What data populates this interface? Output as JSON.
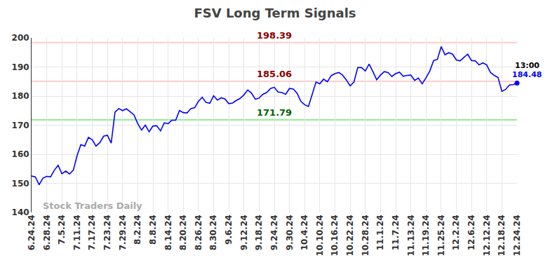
{
  "chart_data": {
    "type": "line",
    "title": "FSV Long Term Signals",
    "watermark": "Stock Traders Daily",
    "color": "#0000ff",
    "grid": true,
    "ylim": [
      140,
      200
    ],
    "yticks": [
      140,
      150,
      160,
      170,
      180,
      190,
      200
    ],
    "last_label": {
      "time": "13:00"
    },
    "levels": [
      {
        "value": 198.39,
        "color": "#ffcccc",
        "text_color": "#8b0000"
      },
      {
        "value": 185.06,
        "color": "#ffcccc",
        "text_color": "#8b0000"
      },
      {
        "value": 171.79,
        "color": "#90ee90",
        "text_color": "#006400"
      }
    ],
    "categories": [
      "6.24.24",
      null,
      null,
      null,
      "6.28.24",
      null,
      null,
      null,
      "7.5.24",
      null,
      null,
      null,
      "7.11.24",
      null,
      null,
      null,
      "7.17.24",
      null,
      null,
      null,
      "7.23.24",
      null,
      null,
      null,
      "7.29.24",
      null,
      null,
      null,
      "8.2.24",
      null,
      null,
      null,
      "8.8.24",
      null,
      null,
      null,
      "8.14.24",
      null,
      null,
      null,
      "8.20.24",
      null,
      null,
      null,
      "8.26.24",
      null,
      null,
      null,
      "8.30.24",
      null,
      null,
      null,
      "9.6.24",
      null,
      null,
      null,
      "9.12.24",
      null,
      null,
      null,
      "9.18.24",
      null,
      null,
      null,
      "9.24.24",
      null,
      null,
      null,
      "9.30.24",
      null,
      null,
      null,
      "10.4.24",
      null,
      null,
      null,
      "10.10.24",
      null,
      null,
      null,
      "10.16.24",
      null,
      null,
      null,
      "10.22.24",
      null,
      null,
      null,
      "10.28.24",
      null,
      null,
      null,
      "11.1.24",
      null,
      null,
      null,
      "11.7.24",
      null,
      null,
      null,
      "11.13.24",
      null,
      null,
      null,
      "11.19.24",
      null,
      null,
      null,
      "11.25.24",
      null,
      null,
      null,
      "12.2.24",
      null,
      null,
      null,
      "12.6.24",
      null,
      null,
      null,
      "12.12.24",
      null,
      null,
      null,
      "12.18.24",
      null,
      null,
      null,
      "12.24.24"
    ],
    "values": [
      152.5,
      152.2,
      149.5,
      151.8,
      152.4,
      152.2,
      154.5,
      156.2,
      153.3,
      154.2,
      153.2,
      154.5,
      159.5,
      163.3,
      162.8,
      165.8,
      165.0,
      162.8,
      164.0,
      166.2,
      166.5,
      163.8,
      174.5,
      175.7,
      175.0,
      175.6,
      174.6,
      173.5,
      170.5,
      168.3,
      170.0,
      167.7,
      169.7,
      169.8,
      168.0,
      170.8,
      170.5,
      171.7,
      171.7,
      175.0,
      174.3,
      174.2,
      175.7,
      176.0,
      178.2,
      179.6,
      177.8,
      177.5,
      180.1,
      178.6,
      179.4,
      179.0,
      177.4,
      177.6,
      178.5,
      179.2,
      180.4,
      182.1,
      181.0,
      178.9,
      179.3,
      180.6,
      181.2,
      182.6,
      183.0,
      181.4,
      181.2,
      180.6,
      182.6,
      182.4,
      181.0,
      178.2,
      177.0,
      176.4,
      180.6,
      184.8,
      184.2,
      185.8,
      184.9,
      187.0,
      187.7,
      188.1,
      187.2,
      185.5,
      183.5,
      184.8,
      189.8,
      189.8,
      188.6,
      191.0,
      188.4,
      185.6,
      187.2,
      188.4,
      188.1,
      186.7,
      187.7,
      188.2,
      186.8,
      187.1,
      187.2,
      185.4,
      186.2,
      184.2,
      186.3,
      188.6,
      192.2,
      192.6,
      197.0,
      194.2,
      194.9,
      194.4,
      192.4,
      192.1,
      193.3,
      194.4,
      192.2,
      192.1,
      190.7,
      191.4,
      190.7,
      188.1,
      187.1,
      186.4,
      181.6,
      182.3,
      183.8,
      183.9,
      184.48
    ]
  }
}
